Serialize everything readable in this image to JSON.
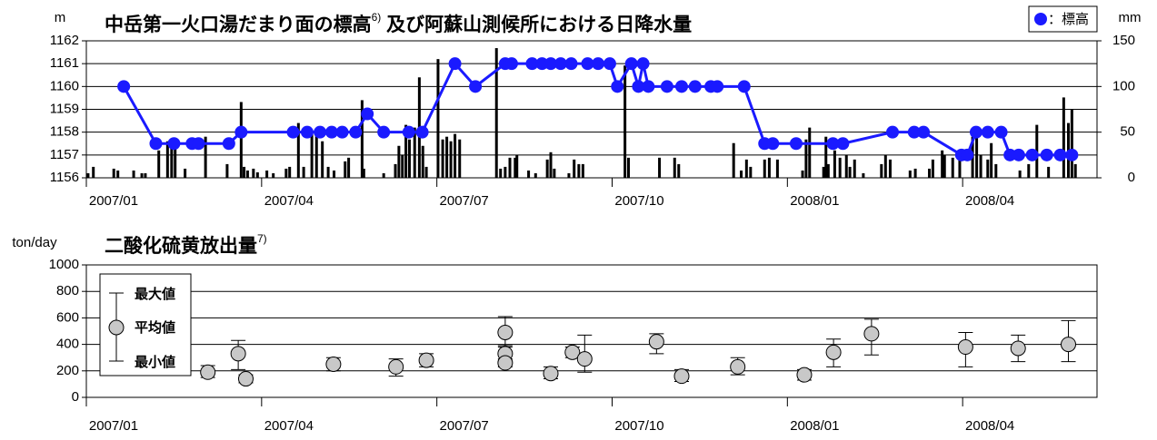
{
  "chart_data": [
    {
      "type": "combo",
      "title": "中岳第一火口湯だまり面の標高",
      "title_note": "6)",
      "title_cont": " 及び阿蘇山測候所における日降水量",
      "ylabel": "m",
      "y2label": "mm",
      "xlim": [
        0,
        17.3
      ],
      "xticks": [
        {
          "value": 0,
          "label": "2007/01"
        },
        {
          "value": 3,
          "label": "2007/04"
        },
        {
          "value": 6,
          "label": "2007/07"
        },
        {
          "value": 9,
          "label": "2007/10"
        },
        {
          "value": 12,
          "label": "2008/01"
        },
        {
          "value": 15,
          "label": "2008/04"
        }
      ],
      "ylim": [
        1156,
        1162
      ],
      "yticks": [
        1156,
        1157,
        1158,
        1159,
        1160,
        1161,
        1162
      ],
      "y2lim": [
        0,
        150
      ],
      "y2ticks": [
        0,
        50,
        100,
        150
      ],
      "grid": true,
      "legend": "upper right",
      "series": [
        {
          "kind": "bar",
          "axis": "y2",
          "color": "#000000",
          "x": [
            0.03,
            0.12,
            0.47,
            0.54,
            0.81,
            0.95,
            1.01,
            1.24,
            1.39,
            1.46,
            1.52,
            1.69,
            2.04,
            2.41,
            2.65,
            2.7,
            2.76,
            2.86,
            2.93,
            3.09,
            3.2,
            3.42,
            3.48,
            3.63,
            3.72,
            3.86,
            3.94,
            4.04,
            4.14,
            4.24,
            4.43,
            4.49,
            4.72,
            4.75,
            5.09,
            5.29,
            5.35,
            5.41,
            5.47,
            5.53,
            5.62,
            5.7,
            5.76,
            5.82,
            6.02,
            6.1,
            6.17,
            6.24,
            6.31,
            6.39,
            7.02,
            7.09,
            7.17,
            7.25,
            7.34,
            7.37,
            7.57,
            7.69,
            7.89,
            7.95,
            8.01,
            8.26,
            8.35,
            8.43,
            8.5,
            9.22,
            9.28,
            9.81,
            10.07,
            10.14,
            11.08,
            11.21,
            11.3,
            11.37,
            11.61,
            11.69,
            11.83,
            12.26,
            12.32,
            12.38,
            12.62,
            12.66,
            12.7,
            12.81,
            12.9,
            13.01,
            13.07,
            13.15,
            13.3,
            13.61,
            13.68,
            13.76,
            14.1,
            14.19,
            14.43,
            14.49,
            14.65,
            14.69,
            14.83,
            14.95,
            15.17,
            15.24,
            15.31,
            15.43,
            15.49,
            15.57,
            15.98,
            16.13,
            16.27,
            16.47,
            16.73,
            16.81,
            16.87,
            16.93
          ],
          "values": [
            5,
            12,
            10,
            8,
            8,
            5,
            5,
            30,
            40,
            38,
            32,
            10,
            45,
            15,
            83,
            12,
            8,
            10,
            6,
            8,
            5,
            10,
            12,
            60,
            12,
            48,
            48,
            40,
            12,
            8,
            18,
            22,
            85,
            10,
            5,
            15,
            35,
            25,
            58,
            42,
            55,
            110,
            35,
            12,
            130,
            42,
            45,
            40,
            48,
            42,
            142,
            10,
            12,
            22,
            22,
            25,
            8,
            5,
            20,
            28,
            10,
            5,
            20,
            15,
            15,
            123,
            22,
            22,
            22,
            15,
            38,
            8,
            20,
            12,
            20,
            22,
            20,
            8,
            42,
            55,
            12,
            45,
            15,
            30,
            22,
            25,
            12,
            20,
            5,
            15,
            25,
            20,
            8,
            10,
            10,
            20,
            30,
            25,
            22,
            25,
            45,
            55,
            25,
            20,
            38,
            15,
            8,
            15,
            58,
            12,
            88,
            60,
            75,
            15
          ]
        },
        {
          "kind": "line",
          "name": "：標高",
          "color": "#1a1aff",
          "x": [
            0.64,
            1.19,
            1.5,
            1.81,
            1.92,
            2.44,
            2.65,
            3.54,
            3.78,
            4.0,
            4.2,
            4.38,
            4.61,
            4.81,
            5.09,
            5.52,
            5.75,
            6.31,
            6.66,
            7.17,
            7.28,
            7.63,
            7.8,
            7.95,
            8.12,
            8.3,
            8.58,
            8.76,
            8.96,
            9.09,
            9.33,
            9.45,
            9.53,
            9.62,
            9.94,
            10.19,
            10.42,
            10.69,
            10.8,
            11.26,
            11.61,
            11.75,
            12.15,
            12.78,
            12.95,
            13.8,
            14.17,
            14.33,
            14.98,
            15.08,
            15.23,
            15.43,
            15.66,
            15.81,
            15.96,
            16.19,
            16.44,
            16.67,
            16.87
          ],
          "values": [
            1160,
            1157.5,
            1157.5,
            1157.5,
            1157.5,
            1157.5,
            1158,
            1158,
            1158,
            1158,
            1158,
            1158,
            1158,
            1158.8,
            1158,
            1158,
            1158,
            1161,
            1160,
            1161,
            1161,
            1161,
            1161,
            1161,
            1161,
            1161,
            1161,
            1161,
            1161,
            1160,
            1161,
            1160,
            1161,
            1160,
            1160,
            1160,
            1160,
            1160,
            1160,
            1160,
            1157.5,
            1157.5,
            1157.5,
            1157.5,
            1157.5,
            1158,
            1158,
            1158,
            1157,
            1157,
            1158,
            1158,
            1158,
            1157,
            1157,
            1157,
            1157,
            1157,
            1157
          ]
        }
      ]
    },
    {
      "type": "errorbar",
      "title": "二酸化硫黄放出量",
      "title_note": "7)",
      "ylabel": "ton/day",
      "xlim": [
        0,
        17.3
      ],
      "xticks": [
        {
          "value": 0,
          "label": "2007/01"
        },
        {
          "value": 3,
          "label": "2007/04"
        },
        {
          "value": 6,
          "label": "2007/07"
        },
        {
          "value": 9,
          "label": "2007/10"
        },
        {
          "value": 12,
          "label": "2008/01"
        },
        {
          "value": 15,
          "label": "2008/04"
        }
      ],
      "ylim": [
        0,
        1000
      ],
      "yticks": [
        0,
        200,
        400,
        600,
        800,
        1000
      ],
      "grid": true,
      "legend_labels": [
        "最大値",
        "平均値",
        "最小値"
      ],
      "series": [
        {
          "color": "#c8c8c8",
          "x": [
            2.08,
            2.6,
            2.73,
            4.23,
            5.3,
            5.82,
            7.17,
            7.17,
            7.17,
            7.95,
            8.32,
            8.53,
            9.76,
            10.19,
            11.15,
            12.29,
            12.79,
            13.44,
            15.05,
            15.95,
            16.81
          ],
          "values": [
            190,
            330,
            140,
            250,
            230,
            280,
            490,
            330,
            260,
            180,
            340,
            290,
            420,
            160,
            230,
            170,
            340,
            480,
            380,
            370,
            400
          ],
          "max": [
            240,
            430,
            170,
            300,
            290,
            330,
            610,
            380,
            290,
            230,
            380,
            470,
            480,
            210,
            300,
            210,
            440,
            590,
            490,
            470,
            580
          ],
          "min": [
            150,
            210,
            110,
            200,
            160,
            230,
            390,
            280,
            230,
            140,
            300,
            190,
            330,
            120,
            170,
            130,
            230,
            320,
            230,
            270,
            270
          ]
        }
      ]
    }
  ]
}
